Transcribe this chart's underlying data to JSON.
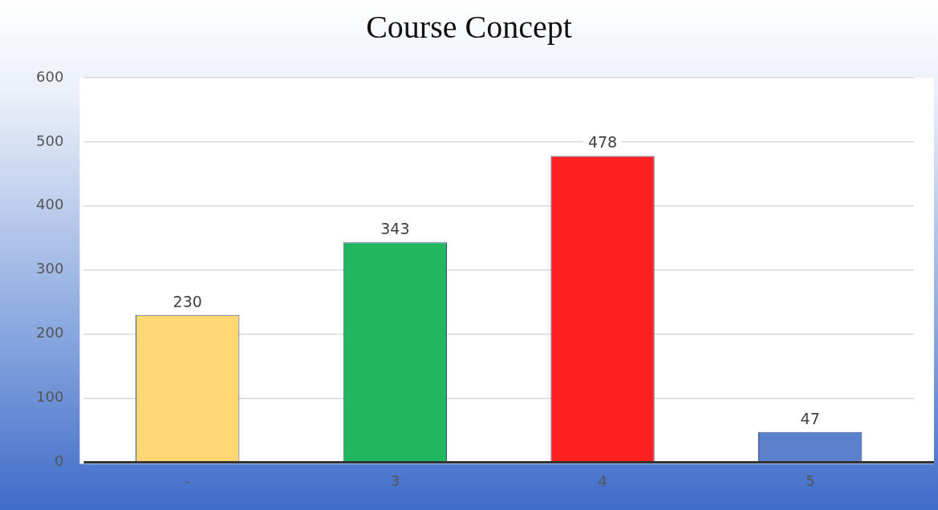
{
  "chart_data": {
    "type": "bar",
    "title": "Course Concept",
    "categories": [
      "-",
      "3",
      "4",
      "5"
    ],
    "values": [
      230,
      343,
      478,
      47
    ],
    "colors": [
      "#ffd873",
      "#21b760",
      "#ff2121",
      "#5b80cc"
    ],
    "ylim": [
      0,
      600
    ],
    "yticks": [
      0,
      100,
      200,
      300,
      400,
      500,
      600
    ],
    "grid": "y",
    "legend": false,
    "data_labels": true
  }
}
